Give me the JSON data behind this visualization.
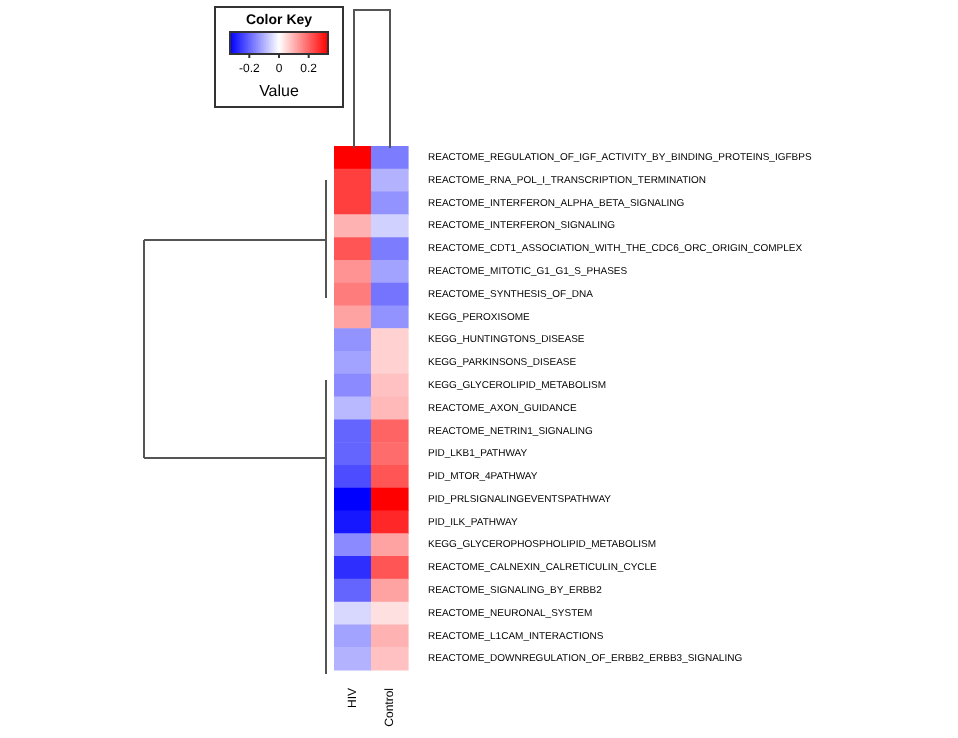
{
  "chart_data": {
    "type": "heatmap",
    "legend_title": "Color Key",
    "clabel": "Value",
    "categories": [
      "HIV",
      "Control"
    ],
    "y_categories": [
      "REACTOME_REGULATION_OF_IGF_ACTIVITY_BY_BINDING_PROTEINS_IGFBPS",
      "REACTOME_RNA_POL_I_TRANSCRIPTION_TERMINATION",
      "REACTOME_INTERFERON_ALPHA_BETA_SIGNALING",
      "REACTOME_INTERFERON_SIGNALING",
      "REACTOME_CDT1_ASSOCIATION_WITH_THE_CDC6_ORC_ORIGIN_COMPLEX",
      "REACTOME_MITOTIC_G1_G1_S_PHASES",
      "REACTOME_SYNTHESIS_OF_DNA",
      "KEGG_PEROXISOME",
      "KEGG_HUNTINGTONS_DISEASE",
      "KEGG_PARKINSONS_DISEASE",
      "KEGG_GLYCEROLIPID_METABOLISM",
      "REACTOME_AXON_GUIDANCE",
      "REACTOME_NETRIN1_SIGNALING",
      "PID_LKB1_PATHWAY",
      "PID_MTOR_4PATHWAY",
      "PID_PRLSIGNALINGEVENTSPATHWAY",
      "PID_ILK_PATHWAY",
      "KEGG_GLYCEROPHOSPHOLIPID_METABOLISM",
      "REACTOME_CALNEXIN_CALRETICULIN_CYCLE",
      "REACTOME_SIGNALING_BY_ERBB2",
      "REACTOME_NEURONAL_SYSTEM",
      "REACTOME_L1CAM_INTERACTIONS",
      "REACTOME_DOWNREGULATION_OF_ERBB2_ERBB3_SIGNALING"
    ],
    "cells": [
      [
        0.33,
        -0.17
      ],
      [
        0.25,
        -0.1
      ],
      [
        0.25,
        -0.14
      ],
      [
        0.1,
        -0.06
      ],
      [
        0.22,
        -0.17
      ],
      [
        0.14,
        -0.12
      ],
      [
        0.17,
        -0.18
      ],
      [
        0.12,
        -0.14
      ],
      [
        -0.14,
        0.06
      ],
      [
        -0.12,
        0.06
      ],
      [
        -0.15,
        0.08
      ],
      [
        -0.09,
        0.09
      ],
      [
        -0.2,
        0.2
      ],
      [
        -0.2,
        0.19
      ],
      [
        -0.23,
        0.22
      ],
      [
        -0.33,
        0.33
      ],
      [
        -0.3,
        0.28
      ],
      [
        -0.15,
        0.12
      ],
      [
        -0.27,
        0.22
      ],
      [
        -0.2,
        0.12
      ],
      [
        -0.05,
        0.04
      ],
      [
        -0.12,
        0.1
      ],
      [
        -0.1,
        0.08
      ]
    ],
    "clim": [
      -0.33,
      0.33
    ],
    "cticks": [
      -0.2,
      0,
      0.2
    ]
  }
}
